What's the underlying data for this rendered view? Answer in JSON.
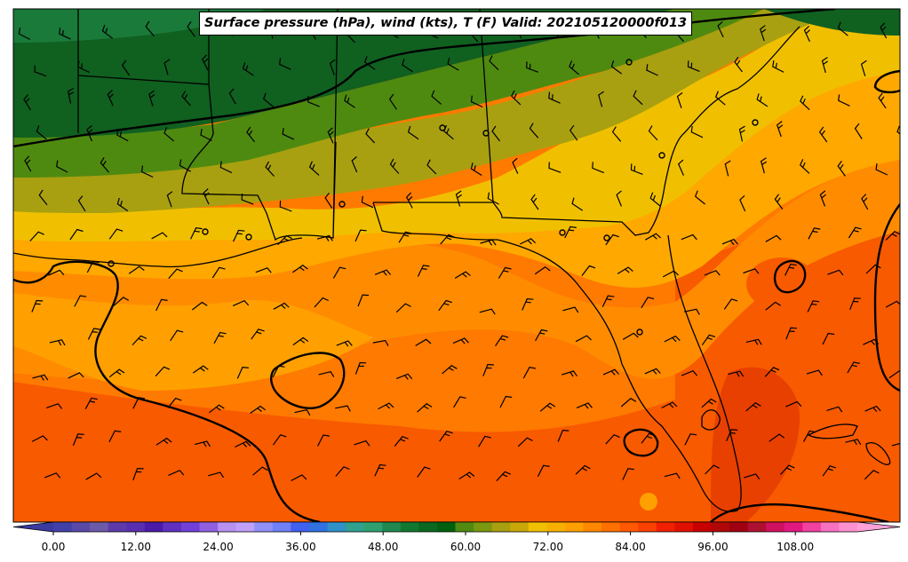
{
  "title": "Surface pressure (hPa), wind (kts), T (F) Valid: 202105120000f013",
  "colorbar": {
    "ticks": [
      "0.00",
      "12.00",
      "24.00",
      "36.00",
      "48.00",
      "60.00",
      "72.00",
      "84.00",
      "96.00",
      "108.00"
    ],
    "colors": [
      "#4040a8",
      "#5a4aa8",
      "#6c5aa8",
      "#5e3aa8",
      "#5a2eb0",
      "#4a1aa8",
      "#6030c0",
      "#7040d8",
      "#9060e0",
      "#b890f0",
      "#c0a0f8",
      "#9090f8",
      "#7080f8",
      "#4060f0",
      "#3070e0",
      "#3090c8",
      "#30a090",
      "#30a070",
      "#208850",
      "#107830",
      "#0a6820",
      "#006010",
      "#508a10",
      "#7a9810",
      "#a8a010",
      "#c8a808",
      "#f0c000",
      "#f8b000",
      "#ffa000",
      "#ff8800",
      "#ff7000",
      "#ff5800",
      "#f84000",
      "#f02000",
      "#e01000",
      "#c80000",
      "#b00808",
      "#a00010",
      "#b01030",
      "#d01060",
      "#e01880",
      "#f040a0",
      "#f870c0",
      "#ff90d0"
    ]
  }
}
